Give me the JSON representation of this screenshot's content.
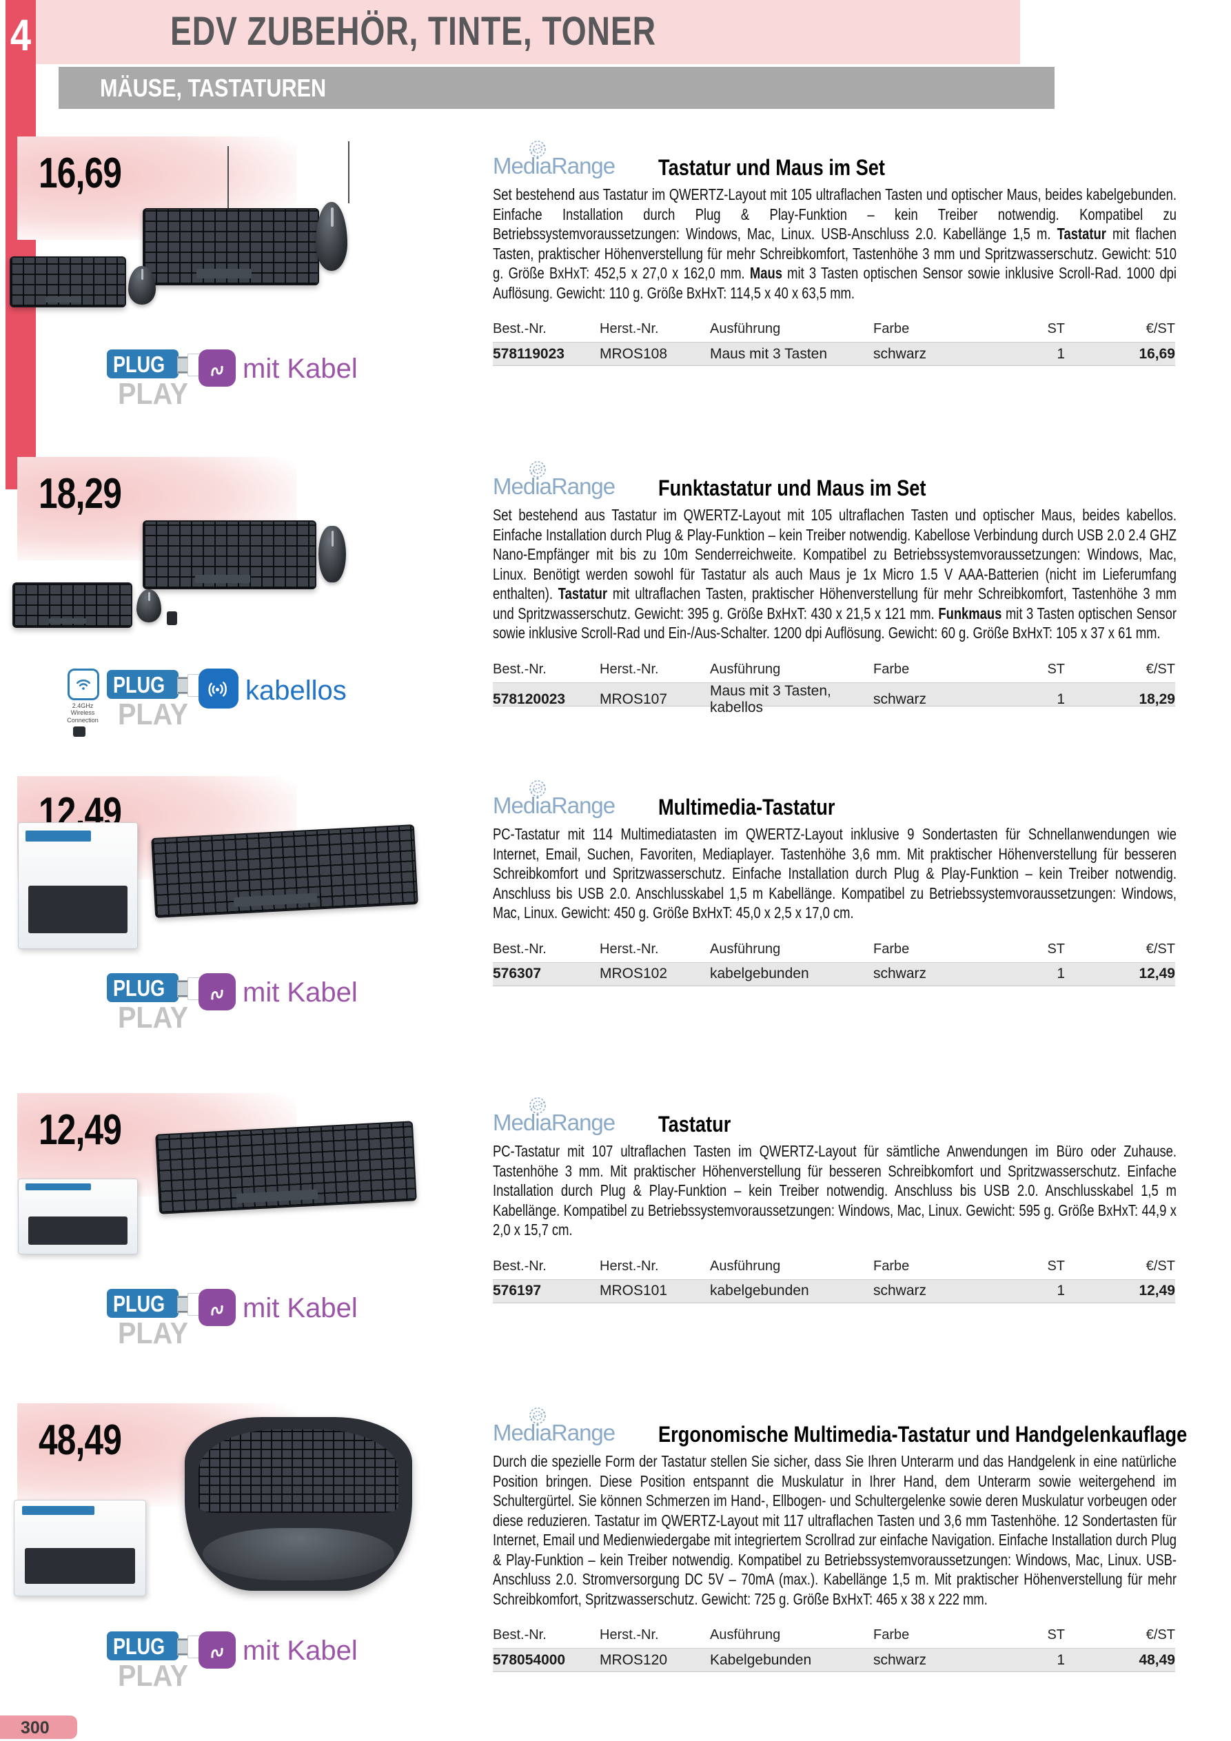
{
  "header": {
    "chapter_number": "4",
    "title": "EDV ZUBEHÖR, TINTE, TONER",
    "category_bar": "MÄUSE, TASTATUREN"
  },
  "footer": {
    "page_number": "300"
  },
  "brand": {
    "name": "MediaRange"
  },
  "table": {
    "headers": [
      "Best.-Nr.",
      "Herst.-Nr.",
      "Ausführung",
      "Farbe",
      "ST",
      "€/ST"
    ]
  },
  "badge_labels": {
    "plug": "PLUG",
    "play": "PLAY",
    "mit_kabel": "mit Kabel",
    "kabellos": "kabellos",
    "wireless_caption": "2.4GHz Wireless Connection"
  },
  "products": [
    {
      "price": "16,69",
      "title": "Tastatur und Maus im Set",
      "badges": [
        "plugplay",
        "mitkabel"
      ],
      "description": [
        {
          "t": "Set bestehend aus Tastatur im QWERTZ-Layout mit 105 ultraflachen Tasten und optischer Maus, beides kabelgebunden. Einfache Installation durch Plug & Play-Funktion – kein Treiber notwendig. Kompatibel zu Betriebssystemvoraussetzungen: Windows, Mac, Linux. USB-Anschluss 2.0. Kabellänge 1,5 m. ",
          "b": false
        },
        {
          "t": "Tastatur",
          "b": true
        },
        {
          "t": " mit flachen Tasten, praktischer Höhenverstellung für mehr Schreibkomfort, Tastenhöhe 3 mm und Spritzwasserschutz. Gewicht: 510 g. Größe BxHxT: 452,5 x 27,0 x 162,0 mm. ",
          "b": false
        },
        {
          "t": "Maus",
          "b": true
        },
        {
          "t": " mit 3 Tasten optischen Sensor sowie inklusive Scroll-Rad. 1000 dpi Auflösung. Gewicht: 110 g. Größe BxHxT: 114,5 x 40 x 63,5 mm.",
          "b": false
        }
      ],
      "row": {
        "best_nr": "578119023",
        "herst_nr": "MROS108",
        "ausfuehrung": "Maus mit 3 Tasten",
        "farbe": "schwarz",
        "st": "1",
        "preis": "16,69"
      }
    },
    {
      "price": "18,29",
      "title": "Funktastatur und Maus im Set",
      "badges": [
        "wireless",
        "plugplay",
        "kabellos"
      ],
      "description": [
        {
          "t": "Set bestehend aus Tastatur im QWERTZ-Layout mit 105 ultraflachen Tasten und optischer Maus, beides kabellos. Einfache Installation durch Plug & Play-Funktion – kein Treiber notwendig. Kabellose Verbindung durch USB 2.0 2.4 GHZ Nano-Empfänger mit bis zu 10m Senderreichweite. Kompatibel zu Betriebssystemvoraussetzungen: Windows, Mac, Linux. Benötigt werden sowohl für Tastatur als auch Maus je 1x Micro 1.5 V AAA-Batterien (nicht im Lieferumfang enthalten). ",
          "b": false
        },
        {
          "t": "Tastatur",
          "b": true
        },
        {
          "t": " mit ultraflachen Tasten, praktischer Höhenverstellung für mehr Schreibkomfort, Tastenhöhe 3 mm und Spritzwasserschutz. Gewicht: 395 g. Größe BxHxT: 430 x 21,5 x 121 mm. ",
          "b": false
        },
        {
          "t": "Funkmaus",
          "b": true
        },
        {
          "t": " mit 3 Tasten optischen Sensor sowie inklusive Scroll-Rad und Ein-/Aus-Schalter. 1200 dpi Auflösung. Gewicht: 60 g. Größe BxHxT: 105 x 37 x 61 mm.",
          "b": false
        }
      ],
      "row": {
        "best_nr": "578120023",
        "herst_nr": "MROS107",
        "ausfuehrung": "Maus mit 3 Tasten, kabellos",
        "farbe": "schwarz",
        "st": "1",
        "preis": "18,29"
      }
    },
    {
      "price": "12,49",
      "title": "Multimedia-Tastatur",
      "badges": [
        "plugplay",
        "mitkabel"
      ],
      "description": [
        {
          "t": "PC-Tastatur mit 114 Multimediatasten im QWERTZ-Layout inklusive 9 Sondertasten für Schnellanwendungen wie Internet, Email, Suchen, Favoriten, Mediaplayer. Tastenhöhe 3,6 mm. Mit praktischer Höhenverstellung für besseren Schreibkomfort und Spritzwasserschutz. Einfache Installation durch Plug & Play-Funktion – kein Treiber notwendig. Anschluss bis USB 2.0. Anschlusskabel 1,5 m Kabellänge. Kompatibel zu Betriebssystemvoraussetzungen: Windows, Mac, Linux. Gewicht: 450 g. Größe BxHxT: 45,0 x 2,5 x 17,0 cm.",
          "b": false
        }
      ],
      "row": {
        "best_nr": "576307",
        "herst_nr": "MROS102",
        "ausfuehrung": "kabelgebunden",
        "farbe": "schwarz",
        "st": "1",
        "preis": "12,49"
      }
    },
    {
      "price": "12,49",
      "title": "Tastatur",
      "badges": [
        "plugplay",
        "mitkabel"
      ],
      "description": [
        {
          "t": "PC-Tastatur mit 107 ultraflachen Tasten im QWERTZ-Layout für sämtliche Anwendungen im Büro oder Zuhause. Tastenhöhe 3 mm. Mit praktischer Höhenverstellung für besseren Schreibkomfort und Spritzwasserschutz. Einfache Installation durch Plug & Play-Funktion – kein Treiber notwendig. Anschluss bis USB 2.0. Anschlusskabel 1,5 m Kabellänge. Kompatibel zu Betriebssystemvoraussetzungen: Windows, Mac, Linux. Gewicht: 595 g. Größe BxHxT: 44,9 x 2,0 x 15,7 cm.",
          "b": false
        }
      ],
      "row": {
        "best_nr": "576197",
        "herst_nr": "MROS101",
        "ausfuehrung": "kabelgebunden",
        "farbe": "schwarz",
        "st": "1",
        "preis": "12,49"
      }
    },
    {
      "price": "48,49",
      "title": "Ergonomische Multimedia-Tastatur und Handgelenkauflage",
      "badges": [
        "plugplay",
        "mitkabel"
      ],
      "description": [
        {
          "t": "Durch die spezielle Form der Tastatur stellen Sie sicher, dass Sie Ihren Unterarm und das Handgelenk in eine natürliche Position bringen. Diese Position entspannt die Muskulatur in Ihrer Hand, dem Unterarm sowie weitergehend im Schultergürtel. Sie können Schmerzen im Hand-, Ellbogen- und Schultergelenke sowie deren Muskulatur vorbeugen oder diese reduzieren. Tastatur im QWERTZ-Layout mit 117 ultraflachen Tasten und 3,6 mm Tastenhöhe. 12 Sondertasten für Internet, Email und Medienwiedergabe mit integriertem Scrollrad zur einfache Navigation. Einfache Installation durch Plug & Play-Funktion – kein Treiber notwendig. Kompatibel zu Betriebssystemvoraussetzungen: Windows, Mac, Linux. USB-Anschluss 2.0. Stromversorgung DC 5V – 70mA (max.). Kabellänge 1,5 m. Mit praktischer Höhenverstellung für mehr Schreibkomfort, Spritzwasserschutz. Gewicht: 725 g. Größe BxHxT: 465 x 38 x 222 mm.",
          "b": false
        }
      ],
      "row": {
        "best_nr": "578054000",
        "herst_nr": "MROS120",
        "ausfuehrung": "Kabelgebunden",
        "farbe": "schwarz",
        "st": "1",
        "preis": "48,49"
      }
    }
  ]
}
